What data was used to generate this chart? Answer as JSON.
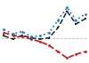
{
  "x": [
    0,
    1,
    2,
    3,
    4,
    5,
    6,
    7,
    8,
    9
  ],
  "blue": [
    4.75,
    4.4,
    4.6,
    4.2,
    4.25,
    4.5,
    5.5,
    6.5,
    5.5,
    6.0
  ],
  "dark": [
    4.25,
    4.0,
    4.3,
    4.1,
    4.0,
    4.1,
    4.9,
    6.2,
    5.2,
    5.6
  ],
  "red": [
    4.5,
    4.3,
    4.2,
    4.0,
    3.8,
    3.5,
    3.0,
    2.5,
    2.8,
    3.0
  ],
  "blue_color": "#1a7fd4",
  "dark_color": "#222222",
  "red_color": "#cc1111",
  "bg_color": "#ffffff",
  "grid_color": "#aaaaaa",
  "hline_y": 4.1,
  "ylim": [
    2.2,
    7.0
  ],
  "xlim": [
    -0.3,
    9.3
  ]
}
